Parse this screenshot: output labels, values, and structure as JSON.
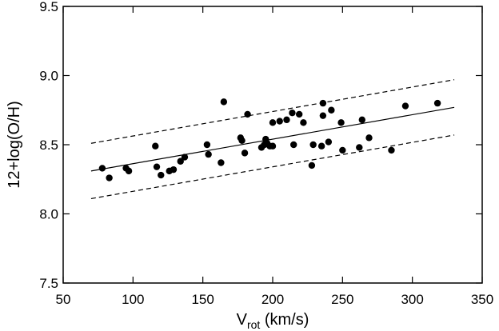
{
  "chart_data": {
    "type": "scatter",
    "title": "",
    "xlabel": "V",
    "xlabel_sub": "rot",
    "xlabel_unit": " (km/s)",
    "ylabel": "12+log(O/H)",
    "xlim": [
      50,
      350
    ],
    "ylim": [
      7.5,
      9.5
    ],
    "xticks": [
      50,
      100,
      150,
      200,
      250,
      300,
      350
    ],
    "xtick_labels": [
      "50",
      "100",
      "150",
      "200",
      "250",
      "300",
      "350"
    ],
    "yticks": [
      7.5,
      8.0,
      8.5,
      9.0,
      9.5
    ],
    "ytick_labels": [
      "7.5",
      "8.0",
      "8.5",
      "9.0",
      "9.5"
    ],
    "grid": false,
    "series": [
      {
        "marker": "circle",
        "color": "#000000",
        "points": [
          {
            "x": 78,
            "y": 8.33
          },
          {
            "x": 83,
            "y": 8.26
          },
          {
            "x": 95,
            "y": 8.33
          },
          {
            "x": 97,
            "y": 8.31
          },
          {
            "x": 116,
            "y": 8.49
          },
          {
            "x": 117,
            "y": 8.34
          },
          {
            "x": 120,
            "y": 8.28
          },
          {
            "x": 126,
            "y": 8.31
          },
          {
            "x": 129,
            "y": 8.32
          },
          {
            "x": 134,
            "y": 8.38
          },
          {
            "x": 137,
            "y": 8.41
          },
          {
            "x": 153,
            "y": 8.5
          },
          {
            "x": 154,
            "y": 8.43
          },
          {
            "x": 163,
            "y": 8.37
          },
          {
            "x": 165,
            "y": 8.81
          },
          {
            "x": 177,
            "y": 8.55
          },
          {
            "x": 178,
            "y": 8.53
          },
          {
            "x": 180,
            "y": 8.44
          },
          {
            "x": 182,
            "y": 8.72
          },
          {
            "x": 192,
            "y": 8.48
          },
          {
            "x": 194,
            "y": 8.5
          },
          {
            "x": 195,
            "y": 8.54
          },
          {
            "x": 196,
            "y": 8.51
          },
          {
            "x": 198,
            "y": 8.49
          },
          {
            "x": 200,
            "y": 8.66
          },
          {
            "x": 200,
            "y": 8.49
          },
          {
            "x": 205,
            "y": 8.67
          },
          {
            "x": 210,
            "y": 8.68
          },
          {
            "x": 214,
            "y": 8.73
          },
          {
            "x": 215,
            "y": 8.5
          },
          {
            "x": 219,
            "y": 8.72
          },
          {
            "x": 222,
            "y": 8.66
          },
          {
            "x": 228,
            "y": 8.35
          },
          {
            "x": 229,
            "y": 8.5
          },
          {
            "x": 235,
            "y": 8.49
          },
          {
            "x": 236,
            "y": 8.8
          },
          {
            "x": 236,
            "y": 8.71
          },
          {
            "x": 240,
            "y": 8.52
          },
          {
            "x": 242,
            "y": 8.75
          },
          {
            "x": 249,
            "y": 8.66
          },
          {
            "x": 250,
            "y": 8.46
          },
          {
            "x": 262,
            "y": 8.48
          },
          {
            "x": 264,
            "y": 8.68
          },
          {
            "x": 269,
            "y": 8.55
          },
          {
            "x": 285,
            "y": 8.46
          },
          {
            "x": 295,
            "y": 8.78
          },
          {
            "x": 318,
            "y": 8.8
          }
        ]
      }
    ],
    "lines": [
      {
        "style": "solid",
        "x": [
          70,
          330
        ],
        "y": [
          8.31,
          8.77
        ]
      },
      {
        "style": "dashed",
        "x": [
          70,
          330
        ],
        "y": [
          8.51,
          8.97
        ]
      },
      {
        "style": "dashed",
        "x": [
          70,
          330
        ],
        "y": [
          8.11,
          8.57
        ]
      }
    ]
  }
}
